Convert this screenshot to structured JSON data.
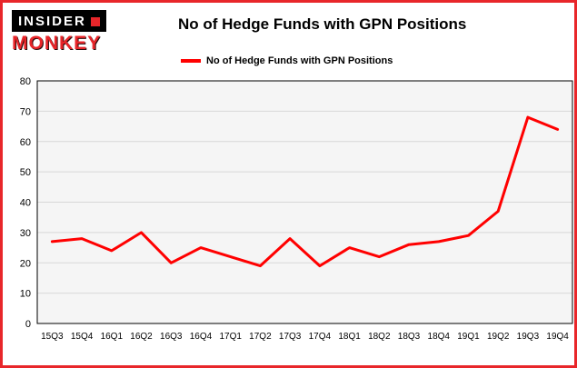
{
  "brand": {
    "top": "INSIDER",
    "bottom": "MONKEY"
  },
  "header": {
    "title": "No of Hedge Funds with GPN Positions"
  },
  "legend": {
    "label": "No of Hedge Funds with GPN Positions"
  },
  "colors": {
    "line": "#ff0000",
    "frame": "#e8262a",
    "grid": "#d8d8d8",
    "plot_bg": "#f5f5f5",
    "plot_border": "#000000",
    "tick_text": "#000000"
  },
  "chart_data": {
    "type": "line",
    "title": "No of Hedge Funds with GPN Positions",
    "xlabel": "",
    "ylabel": "",
    "categories": [
      "15Q3",
      "15Q4",
      "16Q1",
      "16Q2",
      "16Q3",
      "16Q4",
      "17Q1",
      "17Q2",
      "17Q3",
      "17Q4",
      "18Q1",
      "18Q2",
      "18Q3",
      "18Q4",
      "19Q1",
      "19Q2",
      "19Q3",
      "19Q4"
    ],
    "series": [
      {
        "name": "No of Hedge Funds with GPN Positions",
        "color": "#ff0000",
        "values": [
          27,
          28,
          24,
          30,
          20,
          25,
          22,
          19,
          28,
          19,
          25,
          22,
          26,
          27,
          29,
          37,
          68,
          64
        ]
      }
    ],
    "ylim": [
      0,
      80
    ],
    "ytick_interval": 10,
    "grid": true,
    "legend_position": "top-left"
  }
}
